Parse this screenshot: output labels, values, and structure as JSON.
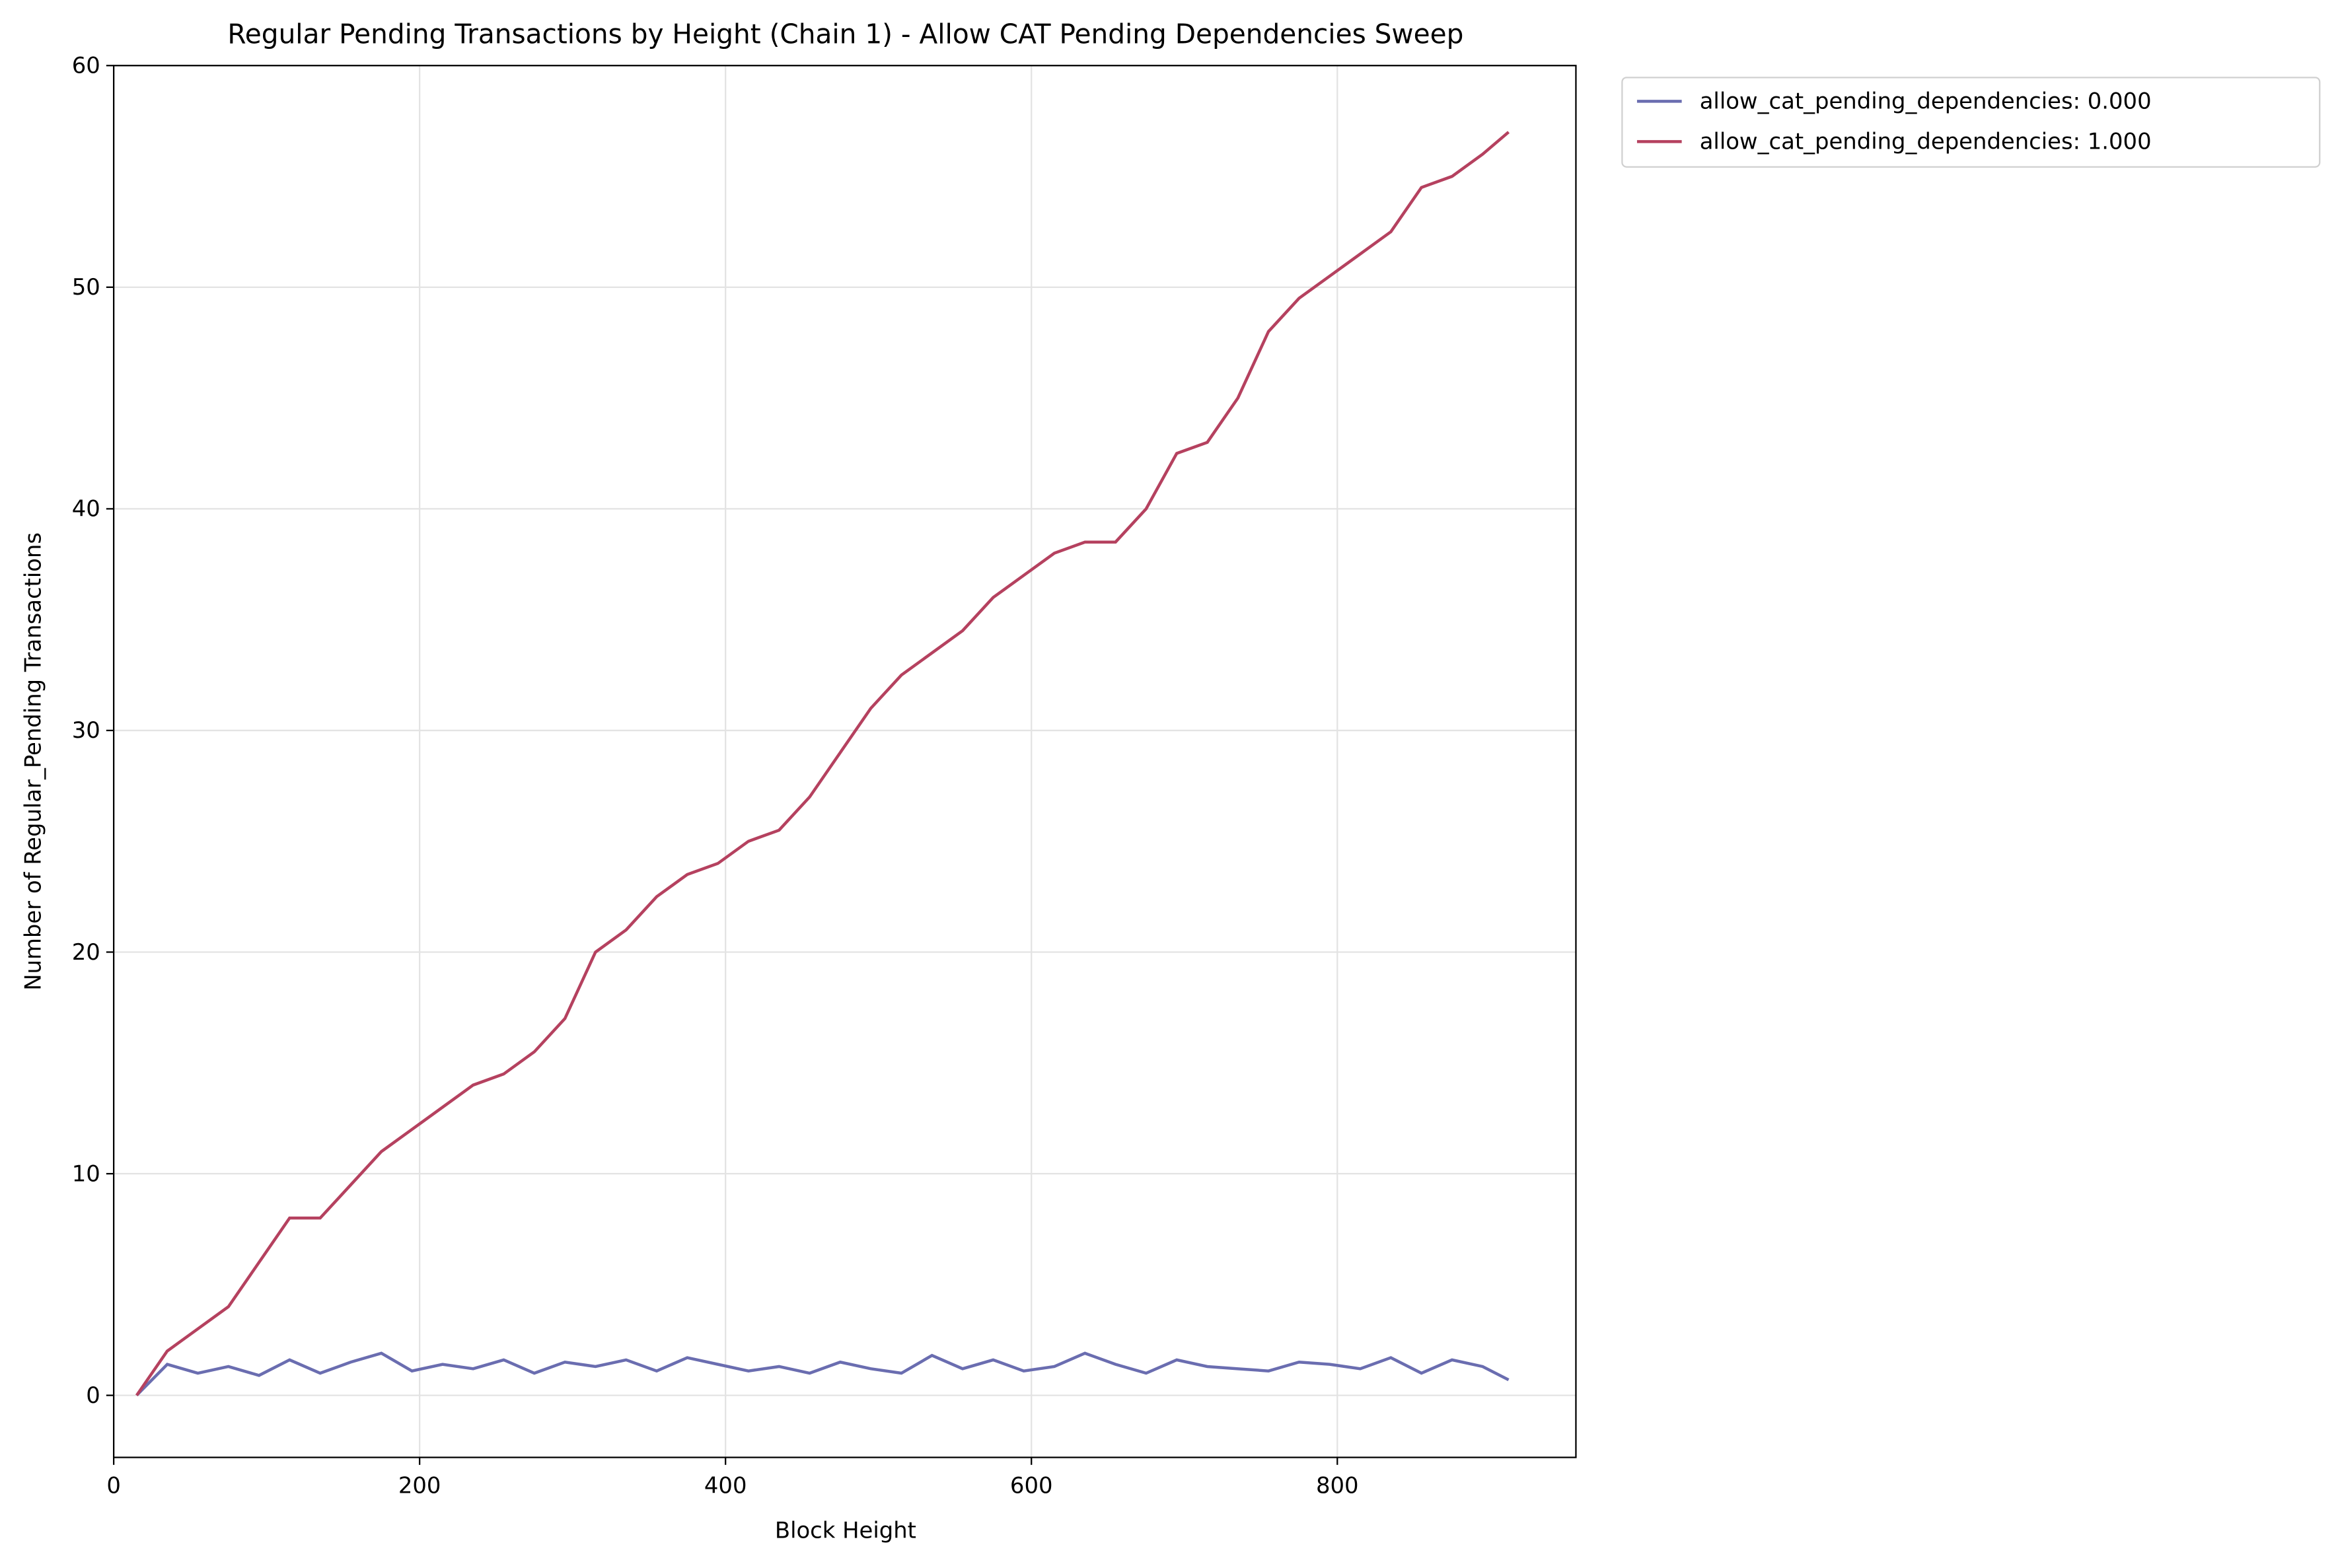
{
  "chart_data": {
    "type": "line",
    "title": "Regular Pending Transactions by Height (Chain 1) - Allow CAT Pending Dependencies Sweep",
    "xlabel": "Block Height",
    "ylabel": "Number of Regular_Pending Transactions",
    "x": [
      15,
      35,
      55,
      75,
      95,
      115,
      135,
      155,
      175,
      195,
      215,
      235,
      255,
      275,
      295,
      315,
      335,
      355,
      375,
      395,
      415,
      435,
      455,
      475,
      495,
      515,
      535,
      555,
      575,
      595,
      615,
      635,
      655,
      675,
      695,
      715,
      735,
      755,
      775,
      795,
      815,
      835,
      855,
      875,
      895,
      912
    ],
    "series": [
      {
        "name": "allow_cat_pending_dependencies: 0.000",
        "color": "#6a6db0",
        "values": [
          0,
          1.4,
          1.0,
          1.3,
          0.9,
          1.6,
          1.0,
          1.5,
          1.9,
          1.1,
          1.4,
          1.2,
          1.6,
          1.0,
          1.5,
          1.3,
          1.6,
          1.1,
          1.7,
          1.4,
          1.1,
          1.3,
          1.0,
          1.5,
          1.2,
          1.0,
          1.8,
          1.2,
          1.6,
          1.1,
          1.3,
          1.9,
          1.4,
          1.0,
          1.6,
          1.3,
          1.2,
          1.1,
          1.5,
          1.4,
          1.2,
          1.7,
          1.0,
          1.6,
          1.3,
          0.7
        ]
      },
      {
        "name": "allow_cat_pending_dependencies: 1.000",
        "color": "#b5415f",
        "values": [
          0,
          2,
          3,
          4,
          6,
          8,
          8,
          9.5,
          11,
          12,
          13,
          14,
          14.5,
          15.5,
          17,
          20,
          21,
          22.5,
          23.5,
          24,
          25,
          25.5,
          27,
          29,
          31,
          32.5,
          33.5,
          34.5,
          36,
          37,
          38,
          38.5,
          38.5,
          40,
          42.5,
          43,
          45,
          48,
          49.5,
          50.5,
          51.5,
          52.5,
          54.5,
          55,
          56,
          57
        ]
      }
    ],
    "xlim": [
      0,
      956
    ],
    "ylim": [
      -2.8,
      60
    ],
    "xticks": [
      0,
      200,
      400,
      600,
      800
    ],
    "yticks": [
      0,
      10,
      20,
      30,
      40,
      50,
      60
    ],
    "grid": true,
    "legend": "outside upper right"
  }
}
